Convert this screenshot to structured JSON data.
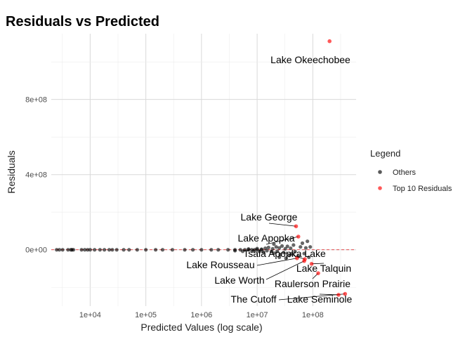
{
  "chart_data": {
    "type": "scatter",
    "title": "Residuals vs Predicted",
    "xlabel": "Predicted Values (log scale)",
    "ylabel": "Residuals",
    "x_scale": "log10",
    "xlim": [
      2000,
      600000000
    ],
    "ylim": [
      -300000000,
      1150000000
    ],
    "x_ticks": [
      10000,
      100000,
      1000000,
      10000000,
      100000000
    ],
    "x_tick_labels": [
      "1e+04",
      "1e+05",
      "1e+06",
      "1e+07",
      "1e+08"
    ],
    "y_ticks": [
      0,
      400000000,
      800000000
    ],
    "y_tick_labels": [
      "0e+00",
      "4e+08",
      "8e+08"
    ],
    "grid": true,
    "reference_line": {
      "y": 0,
      "color": "#e41a1c",
      "style": "dashed"
    },
    "legend": {
      "title": "Legend",
      "position": "right",
      "entries": [
        {
          "label": "Others",
          "color": "#000000"
        },
        {
          "label": "Top 10 Residuals",
          "color": "#ff0000"
        }
      ]
    },
    "series": [
      {
        "name": "Others",
        "color": "#000000",
        "points": [
          [
            2500,
            0
          ],
          [
            2800,
            0
          ],
          [
            3200,
            0
          ],
          [
            4000,
            0
          ],
          [
            4500,
            0
          ],
          [
            4700,
            0
          ],
          [
            5000,
            0
          ],
          [
            7000,
            0
          ],
          [
            8000,
            0
          ],
          [
            9000,
            0
          ],
          [
            10000,
            0
          ],
          [
            12000,
            0
          ],
          [
            15000,
            0
          ],
          [
            18000,
            0
          ],
          [
            22000,
            0
          ],
          [
            25000,
            0
          ],
          [
            30000,
            0
          ],
          [
            40000,
            0
          ],
          [
            50000,
            0
          ],
          [
            70000,
            0
          ],
          [
            100000,
            0
          ],
          [
            150000,
            0
          ],
          [
            200000,
            0
          ],
          [
            300000,
            0
          ],
          [
            500000,
            0
          ],
          [
            700000,
            0
          ],
          [
            1000000,
            0
          ],
          [
            1500000,
            0
          ],
          [
            2000000,
            0
          ],
          [
            3000000,
            0
          ],
          [
            4000000,
            0
          ],
          [
            5000000,
            0
          ],
          [
            6000000,
            0
          ],
          [
            7000000,
            0
          ],
          [
            8000000,
            0
          ],
          [
            9000000,
            0
          ],
          [
            10000000,
            0
          ],
          [
            12000000,
            0
          ],
          [
            4000000,
            -5000000
          ],
          [
            5500000,
            -8000000
          ],
          [
            7000000,
            4000000
          ],
          [
            8500000,
            -6000000
          ],
          [
            10000000,
            6000000
          ],
          [
            11000000,
            -9000000
          ],
          [
            12000000,
            3000000
          ],
          [
            13000000,
            -12000000
          ],
          [
            14000000,
            8000000
          ],
          [
            15000000,
            -5000000
          ],
          [
            16000000,
            12000000
          ],
          [
            18000000,
            -10000000
          ],
          [
            19000000,
            5000000
          ],
          [
            20000000,
            -18000000
          ],
          [
            22000000,
            15000000
          ],
          [
            23000000,
            -8000000
          ],
          [
            25000000,
            10000000
          ],
          [
            26000000,
            -25000000
          ],
          [
            28000000,
            20000000
          ],
          [
            30000000,
            -15000000
          ],
          [
            32000000,
            5000000
          ],
          [
            35000000,
            18000000
          ],
          [
            38000000,
            -30000000
          ],
          [
            40000000,
            8000000
          ],
          [
            45000000,
            25000000
          ],
          [
            48000000,
            -10000000
          ],
          [
            55000000,
            -35000000
          ],
          [
            60000000,
            15000000
          ],
          [
            65000000,
            35000000
          ],
          [
            70000000,
            -20000000
          ],
          [
            75000000,
            10000000
          ],
          [
            80000000,
            45000000
          ],
          [
            85000000,
            -40000000
          ],
          [
            90000000,
            15000000
          ],
          [
            25000000,
            -40000000
          ],
          [
            33000000,
            -45000000
          ],
          [
            42000000,
            -20000000
          ],
          [
            20000000,
            30000000
          ]
        ]
      },
      {
        "name": "Top 10 Residuals",
        "color": "#ff0000",
        "points": [
          {
            "label": "Lake Okeechobee",
            "x": 200000000,
            "y": 1110000000
          },
          {
            "label": "Lake George",
            "x": 50000000,
            "y": 125000000
          },
          {
            "label": "Lake Apopka",
            "x": 55000000,
            "y": 70000000
          },
          {
            "label": "Tsala Apopka Lake",
            "x": 72000000,
            "y": -50000000
          },
          {
            "label": "Lake Rousseau",
            "x": 52000000,
            "y": -45000000
          },
          {
            "label": "Lake Talquin",
            "x": 95000000,
            "y": -75000000
          },
          {
            "label": "Lake Worth",
            "x": 70000000,
            "y": -60000000
          },
          {
            "label": "Raulerson Prairie",
            "x": 125000000,
            "y": -125000000
          },
          {
            "label": "The Cutoff",
            "x": 380000000,
            "y": -235000000
          },
          {
            "label": "Lake Seminole",
            "x": 290000000,
            "y": -240000000
          }
        ]
      }
    ]
  }
}
